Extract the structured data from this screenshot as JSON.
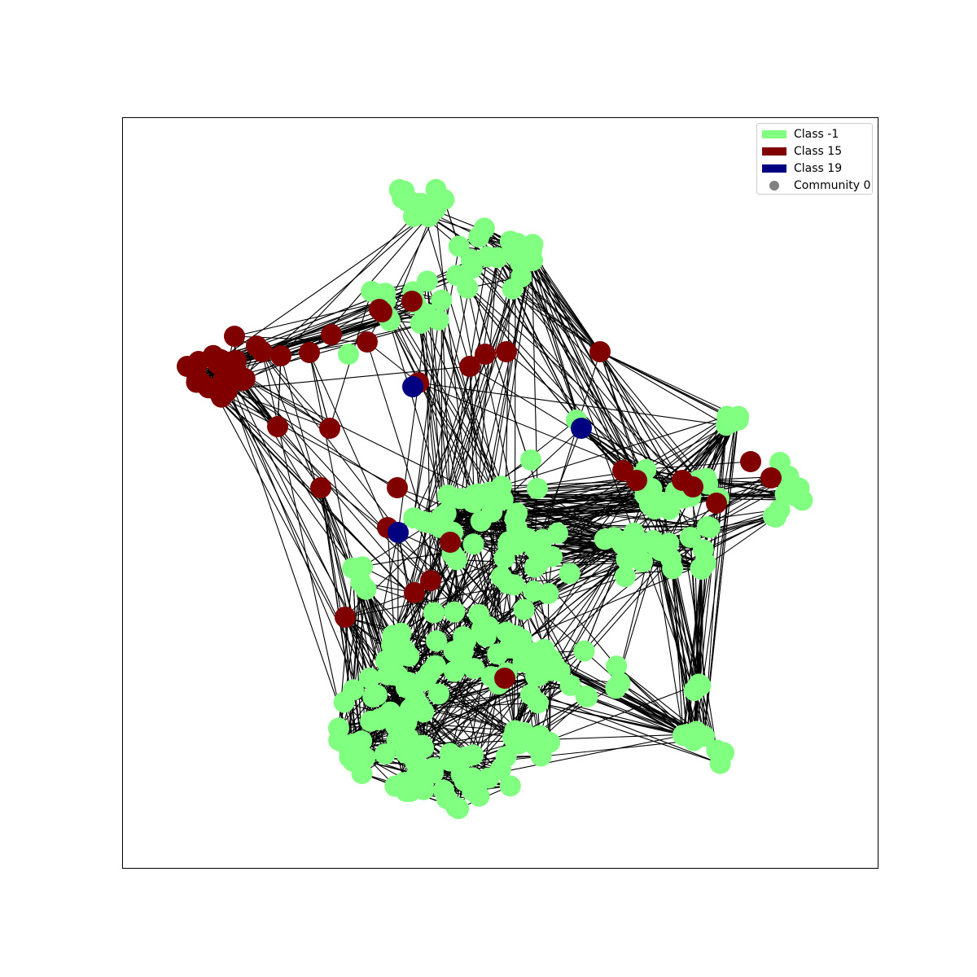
{
  "colors": {
    "class_-1": "#80ff80",
    "class_15": "#800000",
    "class_19": "#000080",
    "community_0": "#808080",
    "edge": "#000000"
  },
  "legend": {
    "placement": "top-right",
    "items": [
      {
        "label": "Class -1",
        "marker": "patch",
        "color": "#80ff80"
      },
      {
        "label": "Class 15",
        "marker": "patch",
        "color": "#800000"
      },
      {
        "label": "Class 19",
        "marker": "patch",
        "color": "#000080"
      },
      {
        "label": "Community 0",
        "marker": "circle",
        "color": "#808080"
      }
    ]
  },
  "chart_data": {
    "type": "network",
    "title": "",
    "axes_visible": false,
    "node_classes": [
      "-1",
      "15",
      "19"
    ],
    "communities": [
      "0"
    ]
  }
}
